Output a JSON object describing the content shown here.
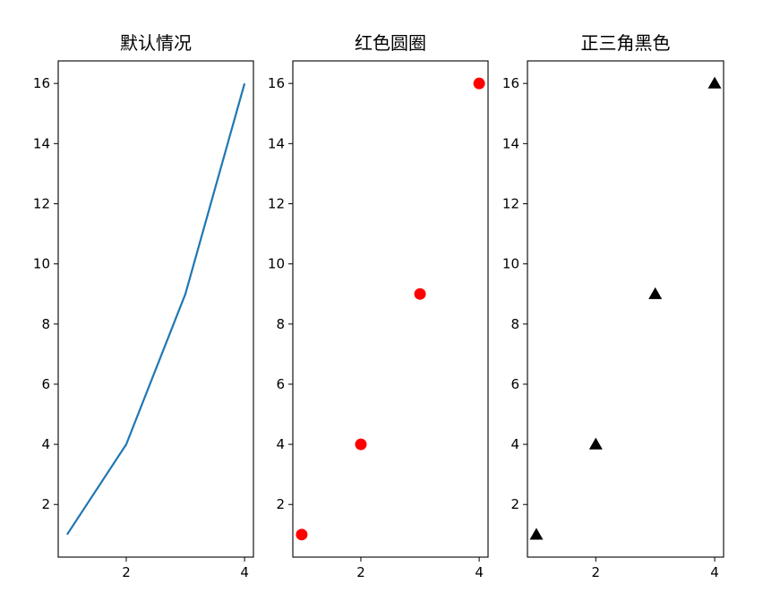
{
  "chart_data": [
    {
      "type": "line",
      "title": "默认情况",
      "x": [
        1,
        2,
        3,
        4
      ],
      "y": [
        1,
        4,
        9,
        16
      ],
      "color": "#1f77b4",
      "xlim": [
        0.85,
        4.15
      ],
      "ylim": [
        0.25,
        16.75
      ],
      "xticks": [
        2,
        4
      ],
      "yticks": [
        2,
        4,
        6,
        8,
        10,
        12,
        14,
        16
      ],
      "grid": false
    },
    {
      "type": "scatter",
      "title": "红色圆圈",
      "x": [
        1,
        2,
        3,
        4
      ],
      "y": [
        1,
        4,
        9,
        16
      ],
      "color": "#ff0000",
      "marker": "circle",
      "xlim": [
        0.85,
        4.15
      ],
      "ylim": [
        0.25,
        16.75
      ],
      "xticks": [
        2,
        4
      ],
      "yticks": [
        2,
        4,
        6,
        8,
        10,
        12,
        14,
        16
      ],
      "grid": false
    },
    {
      "type": "scatter",
      "title": "正三角黑色",
      "x": [
        1,
        2,
        3,
        4
      ],
      "y": [
        1,
        4,
        9,
        16
      ],
      "color": "#000000",
      "marker": "triangle-up",
      "xlim": [
        0.85,
        4.15
      ],
      "ylim": [
        0.25,
        16.75
      ],
      "xticks": [
        2,
        4
      ],
      "yticks": [
        2,
        4,
        6,
        8,
        10,
        12,
        14,
        16
      ],
      "grid": false
    }
  ]
}
